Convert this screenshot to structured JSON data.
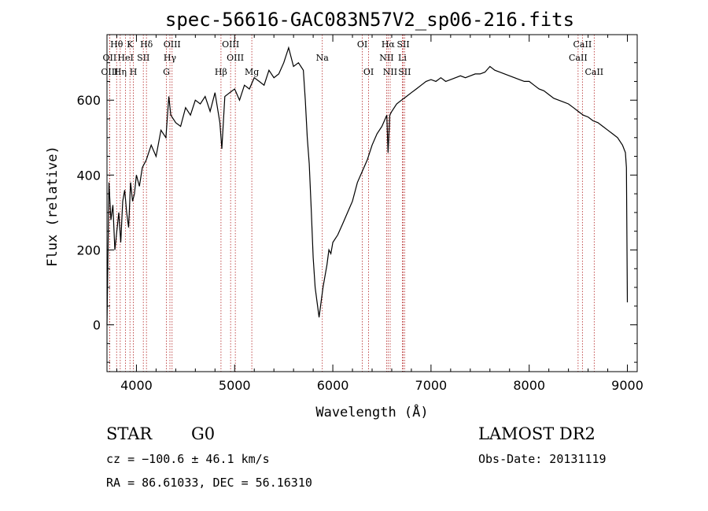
{
  "chart_data": {
    "type": "line",
    "title": "spec-56616-GAC083N57V2_sp06-216.fits",
    "xlabel": "Wavelength (Å)",
    "ylabel": "Flux (relative)",
    "xlim": [
      3700,
      9100
    ],
    "ylim": [
      -125,
      775
    ],
    "x_ticks": [
      4000,
      5000,
      6000,
      7000,
      8000,
      9000
    ],
    "y_ticks": [
      0,
      200,
      400,
      600
    ],
    "grid": false,
    "series": [
      {
        "line_color": "#000000",
        "x": [
          3700,
          3720,
          3740,
          3760,
          3780,
          3800,
          3820,
          3840,
          3860,
          3880,
          3900,
          3920,
          3940,
          3960,
          3980,
          4000,
          4030,
          4060,
          4100,
          4150,
          4200,
          4250,
          4300,
          4330,
          4350,
          4400,
          4450,
          4500,
          4550,
          4600,
          4650,
          4700,
          4750,
          4800,
          4850,
          4870,
          4900,
          4950,
          5000,
          5050,
          5100,
          5150,
          5200,
          5250,
          5300,
          5350,
          5400,
          5450,
          5500,
          5550,
          5600,
          5650,
          5700,
          5720,
          5740,
          5760,
          5780,
          5800,
          5820,
          5840,
          5860,
          5880,
          5900,
          5920,
          5940,
          5960,
          5980,
          6000,
          6050,
          6100,
          6150,
          6200,
          6250,
          6300,
          6350,
          6400,
          6450,
          6500,
          6550,
          6563,
          6580,
          6600,
          6650,
          6700,
          6750,
          6800,
          6850,
          6900,
          6950,
          7000,
          7050,
          7100,
          7150,
          7200,
          7250,
          7300,
          7350,
          7400,
          7450,
          7500,
          7550,
          7600,
          7650,
          7700,
          7750,
          7800,
          7850,
          7900,
          7950,
          8000,
          8050,
          8100,
          8150,
          8200,
          8250,
          8300,
          8350,
          8400,
          8450,
          8500,
          8550,
          8600,
          8650,
          8700,
          8750,
          8800,
          8850,
          8900,
          8950,
          8980,
          8990,
          9000
        ],
        "y": [
          0,
          380,
          280,
          320,
          200,
          250,
          300,
          220,
          330,
          360,
          300,
          260,
          380,
          330,
          350,
          400,
          370,
          420,
          440,
          480,
          450,
          520,
          500,
          610,
          560,
          540,
          530,
          580,
          560,
          600,
          590,
          610,
          570,
          620,
          540,
          470,
          610,
          620,
          630,
          600,
          640,
          630,
          660,
          650,
          640,
          680,
          660,
          670,
          700,
          740,
          690,
          700,
          680,
          600,
          500,
          430,
          310,
          180,
          100,
          60,
          20,
          60,
          100,
          130,
          160,
          200,
          190,
          220,
          240,
          270,
          300,
          330,
          380,
          410,
          440,
          480,
          510,
          530,
          560,
          460,
          560,
          570,
          590,
          600,
          610,
          620,
          630,
          640,
          650,
          655,
          650,
          660,
          650,
          655,
          660,
          665,
          660,
          665,
          670,
          670,
          675,
          690,
          680,
          675,
          670,
          665,
          660,
          655,
          650,
          650,
          640,
          630,
          625,
          615,
          605,
          600,
          595,
          590,
          580,
          570,
          560,
          555,
          545,
          540,
          530,
          520,
          510,
          500,
          480,
          460,
          420,
          60
        ]
      }
    ],
    "spectral_lines": [
      {
        "label": "Hθ",
        "x": 3798,
        "row": 1
      },
      {
        "label": "OII",
        "x": 3727,
        "row": 2
      },
      {
        "label": "OIII",
        "x": 3727,
        "row": 3
      },
      {
        "label": "K",
        "x": 3934,
        "row": 1
      },
      {
        "label": "HeI",
        "x": 3889,
        "row": 2
      },
      {
        "label": "Hη",
        "x": 3835,
        "row": 3
      },
      {
        "label": "Hδ",
        "x": 4102,
        "row": 1
      },
      {
        "label": "SII",
        "x": 4070,
        "row": 2
      },
      {
        "label": "H",
        "x": 3969,
        "row": 3
      },
      {
        "label": "OIII",
        "x": 4363,
        "row": 1
      },
      {
        "label": "Hγ",
        "x": 4341,
        "row": 2
      },
      {
        "label": "G",
        "x": 4305,
        "row": 3
      },
      {
        "label": "OIII",
        "x": 4959,
        "row": 1
      },
      {
        "label": "OIII",
        "x": 5007,
        "row": 2
      },
      {
        "label": "Hβ",
        "x": 4861,
        "row": 3
      },
      {
        "label": "Mg",
        "x": 5175,
        "row": 3
      },
      {
        "label": "Na",
        "x": 5893,
        "row": 2
      },
      {
        "label": "OI",
        "x": 6300,
        "row": 1
      },
      {
        "label": "OI",
        "x": 6364,
        "row": 3
      },
      {
        "label": "Hα",
        "x": 6563,
        "row": 1
      },
      {
        "label": "SII",
        "x": 6717,
        "row": 1
      },
      {
        "label": "NII",
        "x": 6548,
        "row": 2
      },
      {
        "label": "Li",
        "x": 6708,
        "row": 2
      },
      {
        "label": "NII",
        "x": 6584,
        "row": 3
      },
      {
        "label": "SII",
        "x": 6731,
        "row": 3
      },
      {
        "label": "CaII",
        "x": 8542,
        "row": 1
      },
      {
        "label": "CaII",
        "x": 8498,
        "row": 2
      },
      {
        "label": "CaII",
        "x": 8662,
        "row": 3
      }
    ]
  },
  "info": {
    "class_label": "STAR",
    "subclass_label": "G0",
    "survey_label": "LAMOST DR2",
    "cz_text": "cz = −100.6 ± 46.1 km/s",
    "obs_date_text": "Obs-Date: 20131119",
    "coords_text": "RA =  86.61033, DEC =  56.16310"
  },
  "colors": {
    "spectrum": "#000000",
    "line_markers": "#b22222"
  }
}
